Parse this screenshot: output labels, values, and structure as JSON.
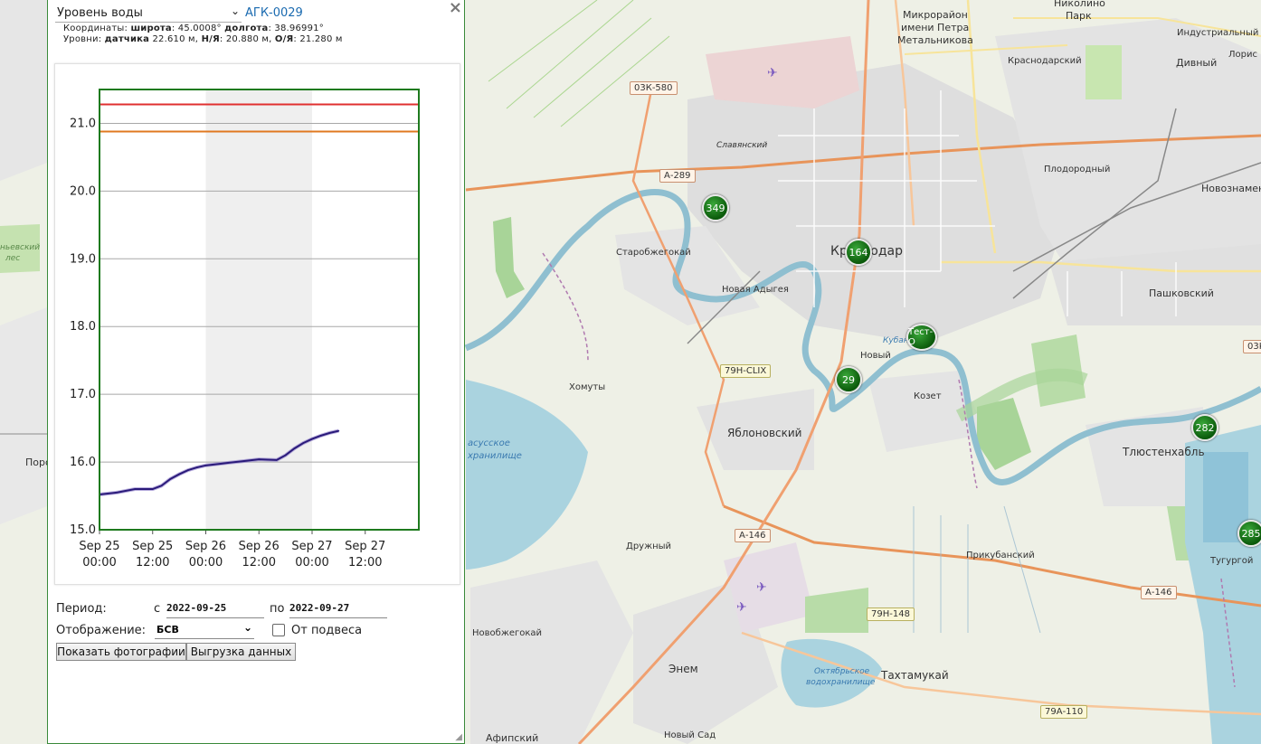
{
  "panel": {
    "parameter_select": "Уровень воды",
    "station_id": "АГК-0029",
    "coords_prefix": "Координаты:",
    "lat_label": "широта",
    "lat_value": ": 45.0008°",
    "lon_label": "долгота",
    "lon_value": ": 38.96991°",
    "levels_prefix": "Уровни:",
    "sensor_label": "датчика",
    "sensor_value": " 22.610 м,",
    "ny_label": "Н/Я",
    "ny_value": ": 20.880 м,",
    "oy_label": "О/Я",
    "oy_value": ": 21.280 м",
    "period_label": "Период:",
    "from_label": "с",
    "from_value": "2022-09-25",
    "to_label": "по",
    "to_value": "2022-09-27",
    "display_label": "Отображение:",
    "display_value": "БСВ",
    "hang_label": "От подвеса",
    "photos_button": "Показать фотографии",
    "export_button": "Выгрузка данных",
    "close_icon": "close-icon"
  },
  "chart_data": {
    "type": "line",
    "title": "",
    "xlabel": "",
    "ylabel": "",
    "ylim": [
      15.0,
      21.5
    ],
    "yticks": [
      "15.0",
      "16.0",
      "17.0",
      "18.0",
      "19.0",
      "20.0",
      "21.0"
    ],
    "xticks": [
      {
        "l1": "Sep 25",
        "l2": "00:00"
      },
      {
        "l1": "Sep 25",
        "l2": "12:00"
      },
      {
        "l1": "Sep 26",
        "l2": "00:00"
      },
      {
        "l1": "Sep 26",
        "l2": "12:00"
      },
      {
        "l1": "Sep 27",
        "l2": "00:00"
      },
      {
        "l1": "Sep 27",
        "l2": "12:00"
      }
    ],
    "x_hours_range": [
      0,
      60
    ],
    "shaded_band_hours": [
      24,
      48
    ],
    "thresholds": [
      {
        "value": 21.28,
        "color": "#e03030"
      },
      {
        "value": 20.88,
        "color": "#e07820"
      }
    ],
    "series": [
      {
        "color": "#2a1a7a",
        "x_hours": [
          0,
          4,
          8,
          12,
          14,
          16,
          18,
          20,
          22,
          24,
          28,
          32,
          36,
          40,
          42,
          44,
          46,
          48,
          50,
          52,
          54
        ],
        "values": [
          15.52,
          15.55,
          15.6,
          15.6,
          15.65,
          15.75,
          15.82,
          15.88,
          15.92,
          15.95,
          15.98,
          16.01,
          16.04,
          16.03,
          16.1,
          16.2,
          16.28,
          16.34,
          16.39,
          16.43,
          16.46
        ]
      }
    ],
    "grid": true
  },
  "map": {
    "labels": [
      {
        "text": "Николино",
        "size": 11
      },
      {
        "text": "Парк",
        "size": 11
      },
      {
        "text": "Микрорайон",
        "size": 11
      },
      {
        "text": "имени Петра",
        "size": 11
      },
      {
        "text": "Метальникова",
        "size": 11
      },
      {
        "text": "Индустриальный",
        "size": 10
      },
      {
        "text": "Краснодарский",
        "size": 10
      },
      {
        "text": "Дивный",
        "size": 11
      },
      {
        "text": "Лорис",
        "size": 10
      },
      {
        "text": "Славянский",
        "size": 9
      },
      {
        "text": "Плодородный",
        "size": 10
      },
      {
        "text": "Новознамен",
        "size": 11
      },
      {
        "text": "Старобжегокай",
        "size": 10
      },
      {
        "text": "Краснодар",
        "size": 14
      },
      {
        "text": "Новая Адыгея",
        "size": 10
      },
      {
        "text": "Пашковский",
        "size": 11
      },
      {
        "text": "Новый",
        "size": 10
      },
      {
        "text": "Козет",
        "size": 10
      },
      {
        "text": "Хомуты",
        "size": 10
      },
      {
        "text": "Яблоновский",
        "size": 12
      },
      {
        "text": "Тлюстенхабль",
        "size": 12
      },
      {
        "text": "Дружный",
        "size": 10
      },
      {
        "text": "Прикубанский",
        "size": 10
      },
      {
        "text": "Тугургой",
        "size": 10
      },
      {
        "text": "Новобжегокай",
        "size": 10
      },
      {
        "text": "Энем",
        "size": 12
      },
      {
        "text": "Тахтамукай",
        "size": 12
      },
      {
        "text": "Новый Сад",
        "size": 10
      },
      {
        "text": "Афипский",
        "size": 11
      },
      {
        "text": "Поро",
        "size": 11
      },
      {
        "text": "ньевский",
        "size": 9
      },
      {
        "text": "лес",
        "size": 9
      },
      {
        "text": "Кубань",
        "size": 9
      },
      {
        "text": "асусское",
        "size": 10
      },
      {
        "text": "хранилище",
        "size": 10
      },
      {
        "text": "Октябрьское",
        "size": 9
      },
      {
        "text": "водохранилище",
        "size": 9
      }
    ],
    "shields": [
      "03К-580",
      "А-289",
      "79Н-CLIX",
      "А-146",
      "А-146",
      "79Н-148",
      "79А-110",
      "03К"
    ],
    "markers": [
      "349",
      "164",
      "Тест-О",
      "29",
      "282",
      "285"
    ],
    "colors": {
      "water": "#aad3df",
      "park": "#c8e6b0",
      "urban": "#dcdcdc",
      "road": "#f7c69a",
      "trunk": "#e8945a"
    }
  }
}
